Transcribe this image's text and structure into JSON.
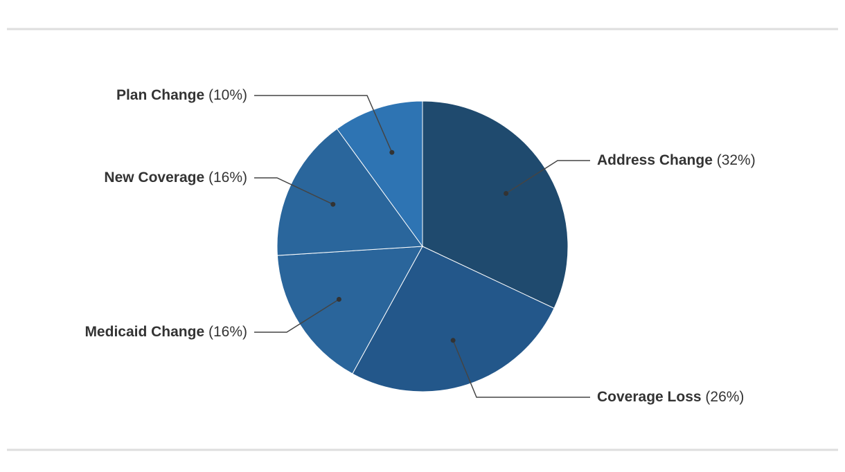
{
  "chart_data": {
    "type": "pie",
    "categories": [
      "Address Change",
      "Coverage Loss",
      "Medicaid Change",
      "New Coverage",
      "Plan Change"
    ],
    "values": [
      32,
      26,
      16,
      16,
      10
    ],
    "value_labels": [
      "(32%)",
      "(26%)",
      "(16%)",
      "(16%)",
      "(10%)"
    ],
    "colors": [
      "#1f4a6e",
      "#23578a",
      "#2a659b",
      "#2a669c",
      "#2e74b3"
    ]
  }
}
